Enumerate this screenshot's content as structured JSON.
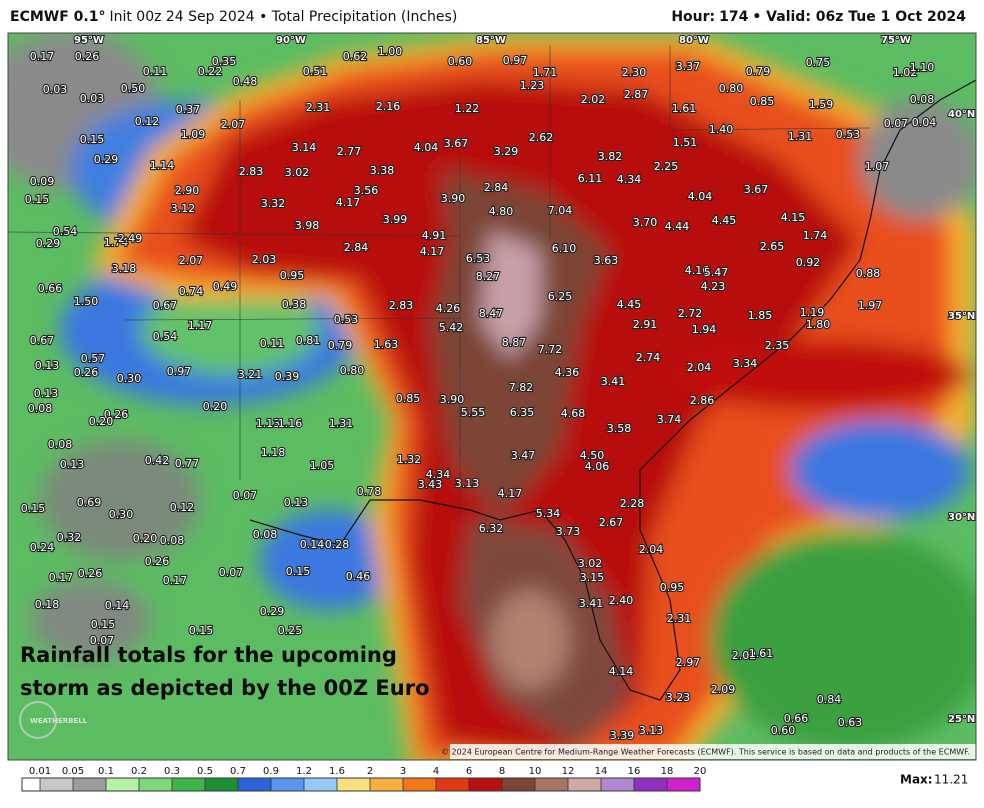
{
  "header": {
    "model": "ECMWF 0.1°",
    "run": "Init 00z 24 Sep 2024 • Total Precipitation (Inches)",
    "hour": "Hour:",
    "hour_value": "174",
    "valid": "• Valid: 06z Tue 1 Oct 2024"
  },
  "grid_labels": {
    "lon": [
      "95°W",
      "90°W",
      "85°W",
      "80°W",
      "75°W"
    ],
    "lat": [
      "40°N",
      "35°N",
      "30°N",
      "25°N"
    ]
  },
  "map_labels": [
    "0.17",
    "0.26",
    "0.11",
    "0.35",
    "0.22",
    "0.48",
    "0.51",
    "0.62",
    "1.00",
    "0.60",
    "0.97",
    "1.71",
    "1.23",
    "2.30",
    "3.37",
    "0.79",
    "0.75",
    "1.02",
    "1.10",
    "0.03",
    "0.03",
    "0.50",
    "0.12",
    "0.37",
    "1.09",
    "2.07",
    "2.31",
    "2.16",
    "1.22",
    "2.02",
    "2.87",
    "1.61",
    "0.80",
    "0.85",
    "1.59",
    "0.08",
    "0.07",
    "0.04",
    "0.15",
    "0.29",
    "1.14",
    "3.14",
    "2.77",
    "4.04",
    "3.67",
    "3.29",
    "2.62",
    "3.82",
    "1.40",
    "1.51",
    "1.31",
    "0.53",
    "1.07",
    "0.09",
    "0.15",
    "2.83",
    "3.02",
    "3.38",
    "6.11",
    "4.34",
    "2.25",
    "2.90",
    "3.56",
    "2.84",
    "4.04",
    "3.67",
    "3.12",
    "3.32",
    "4.17",
    "3.90",
    "4.80",
    "7.04",
    "3.70",
    "4.44",
    "4.45",
    "4.15",
    "3.99",
    "3.98",
    "0.54",
    "1.74",
    "2.49",
    "4.91",
    "1.74",
    "0.29",
    "2.84",
    "4.17",
    "6.10",
    "2.65",
    "6.53",
    "3.63",
    "2.07",
    "2.03",
    "0.92",
    "3.18",
    "4.16",
    "5.47",
    "0.88",
    "0.95",
    "8.27",
    "4.23",
    "0.66",
    "0.74",
    "0.49",
    "6.25",
    "1.50",
    "0.67",
    "0.38",
    "2.83",
    "4.26",
    "8.47",
    "4.45",
    "2.72",
    "1.85",
    "1.19",
    "1.97",
    "0.53",
    "2.91",
    "1.94",
    "1.80",
    "1.17",
    "5.42",
    "0.54",
    "0.67",
    "0.11",
    "0.81",
    "0.79",
    "1.63",
    "8.87",
    "7.72",
    "2.35",
    "2.74",
    "0.57",
    "3.34",
    "0.13",
    "0.26",
    "0.97",
    "0.39",
    "0.80",
    "4.36",
    "2.04",
    "0.30",
    "3.21",
    "3.41",
    "7.82",
    "0.13",
    "0.85",
    "3.90",
    "2.86",
    "0.08",
    "0.20",
    "5.55",
    "6.35",
    "4.68",
    "0.26",
    "0.20",
    "3.74",
    "1.13",
    "1.16",
    "1.31",
    "3.58",
    "0.08",
    "1.18",
    "3.47",
    "4.50",
    "0.42",
    "0.77",
    "1.32",
    "4.06",
    "0.13",
    "1.05",
    "4.34",
    "3.43",
    "3.13",
    "4.17",
    "0.07",
    "0.69",
    "0.78",
    "0.13",
    "0.12",
    "2.28",
    "0.15",
    "0.30",
    "5.34",
    "2.67",
    "6.32",
    "3.73",
    "0.08",
    "0.32",
    "0.20",
    "0.08",
    "0.14",
    "0.28",
    "0.24",
    "2.04",
    "0.26",
    "3.02",
    "0.17",
    "0.26",
    "0.07",
    "0.15",
    "0.46",
    "3.15",
    "0.17",
    "0.95",
    "0.18",
    "0.14",
    "3.41",
    "2.40",
    "0.29",
    "0.15",
    "2.31",
    "0.15",
    "0.25",
    "0.07",
    "2.02",
    "1.61",
    "2.97",
    "4.14",
    "2.09",
    "3.23",
    "0.84",
    "0.66",
    "0.63",
    "0.60",
    "3.39",
    "3.13"
  ],
  "annotation": [
    "Rainfall totals for the upcoming",
    "storm as depicted by the 00Z Euro"
  ],
  "logo": "WEATHERBELL",
  "credit": "© 2024 European Centre for Medium-Range Weather Forecasts (ECMWF). This service is based on data and products of the ECMWF.",
  "legend": {
    "ticks": [
      "0.01",
      "0.05",
      "0.1",
      "0.2",
      "0.3",
      "0.5",
      "0.7",
      "0.9",
      "1.2",
      "1.6",
      "2",
      "3",
      "4",
      "6",
      "8",
      "10",
      "12",
      "14",
      "16",
      "18",
      "20"
    ],
    "colors": [
      "#ffffff",
      "#c8c8c8",
      "#9c9c9c",
      "#b4f0a8",
      "#7cd878",
      "#3cb44a",
      "#1f8f35",
      "#2c64d8",
      "#5a96f0",
      "#96c8fa",
      "#f8e080",
      "#f8b040",
      "#f07818",
      "#e03a14",
      "#b81010",
      "#7e4434",
      "#a87464",
      "#d0a8a4",
      "#b088d0",
      "#9030c0",
      "#d020d0"
    ]
  },
  "max": {
    "label": "Max:",
    "value": "11.21"
  }
}
